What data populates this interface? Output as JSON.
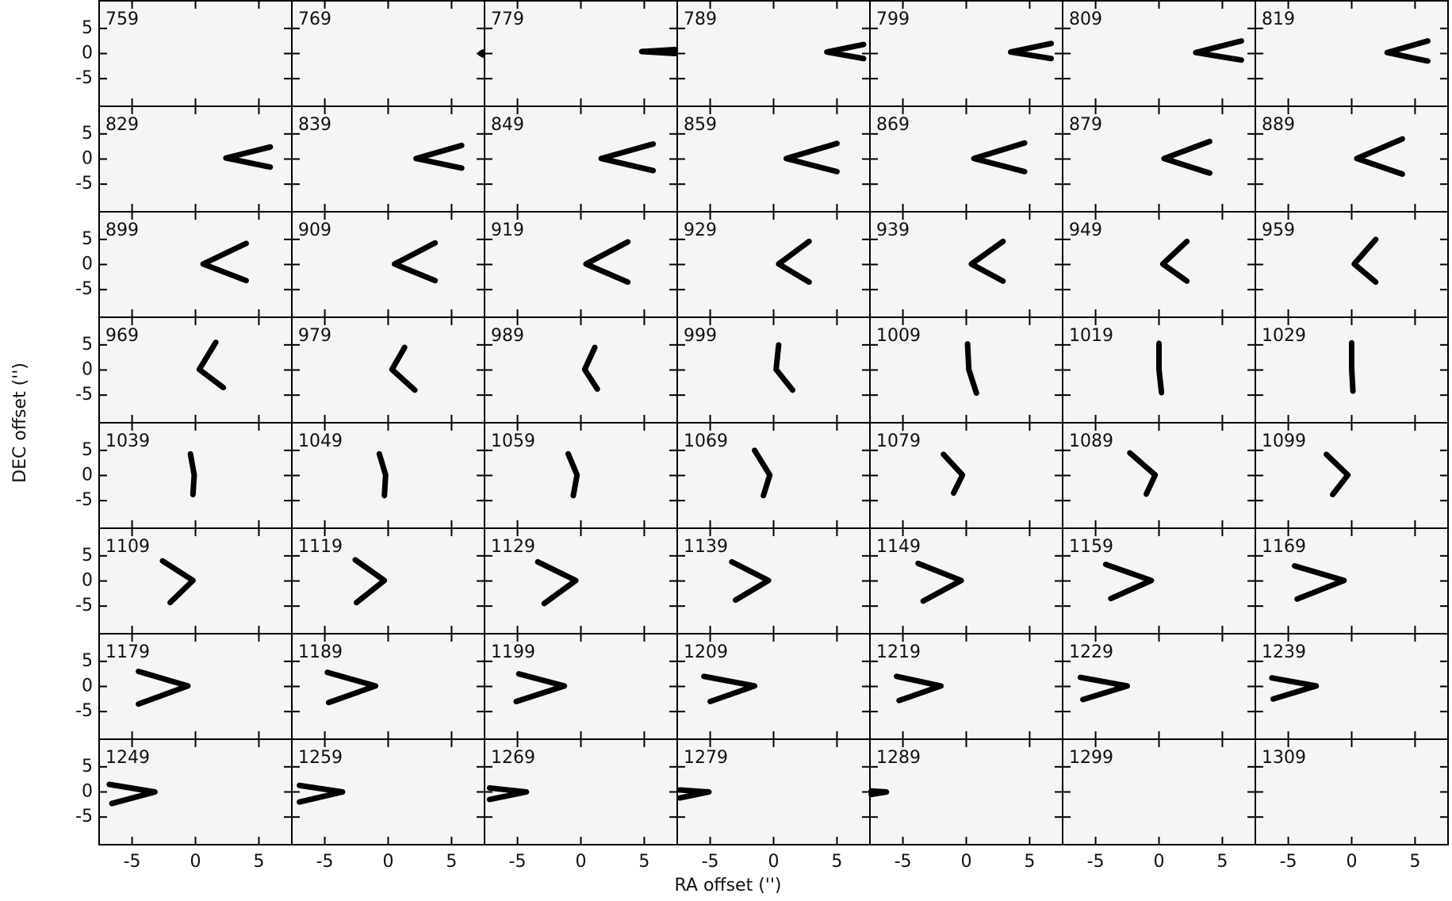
{
  "chart_data": {
    "type": "channel-map",
    "xlabel": "RA offset ('')",
    "ylabel": "DEC offset ('')",
    "xlim": [
      -7.6,
      7.6
    ],
    "ylim": [
      -10.5,
      10.5
    ],
    "xticks": [
      -5,
      0,
      5
    ],
    "yticks": [
      -5,
      0,
      5
    ],
    "color": "#000000",
    "panels": [
      {
        "label": 759
      },
      {
        "label": 769,
        "vertex": [
          7.3,
          0
        ],
        "tips": [
          [
            7.5,
            0.3
          ],
          [
            7.5,
            -0.3
          ]
        ]
      },
      {
        "label": 779,
        "vertex": [
          4.8,
          0.4
        ],
        "tips": [
          [
            7.4,
            0.8
          ],
          [
            7.4,
            0
          ]
        ]
      },
      {
        "label": 789,
        "vertex": [
          4.2,
          0.3
        ],
        "tips": [
          [
            7.1,
            1.8
          ],
          [
            7.1,
            -1
          ]
        ]
      },
      {
        "label": 799,
        "vertex": [
          3.5,
          0.3
        ],
        "tips": [
          [
            6.7,
            2
          ],
          [
            6.7,
            -1
          ]
        ]
      },
      {
        "label": 809,
        "vertex": [
          2.9,
          0.2
        ],
        "tips": [
          [
            6.5,
            2.5
          ],
          [
            6.5,
            -1.3
          ]
        ]
      },
      {
        "label": 819,
        "vertex": [
          2.8,
          0.2
        ],
        "tips": [
          [
            6,
            2.5
          ],
          [
            6,
            -1.5
          ]
        ]
      },
      {
        "label": 829,
        "vertex": [
          2.4,
          0.2
        ],
        "tips": [
          [
            5.9,
            2.4
          ],
          [
            5.9,
            -1.6
          ]
        ]
      },
      {
        "label": 839,
        "vertex": [
          2.2,
          0.1
        ],
        "tips": [
          [
            5.8,
            2.7
          ],
          [
            5.8,
            -1.8
          ]
        ]
      },
      {
        "label": 849,
        "vertex": [
          1.6,
          0.1
        ],
        "tips": [
          [
            5.7,
            3
          ],
          [
            5.7,
            -2.3
          ]
        ]
      },
      {
        "label": 859,
        "vertex": [
          1,
          0.1
        ],
        "tips": [
          [
            5,
            3.1
          ],
          [
            5,
            -2.5
          ]
        ]
      },
      {
        "label": 869,
        "vertex": [
          0.6,
          0.1
        ],
        "tips": [
          [
            4.6,
            3.2
          ],
          [
            4.6,
            -2.5
          ]
        ]
      },
      {
        "label": 879,
        "vertex": [
          0.4,
          0.1
        ],
        "tips": [
          [
            4,
            3.5
          ],
          [
            4,
            -2.8
          ]
        ]
      },
      {
        "label": 889,
        "vertex": [
          0.4,
          0.1
        ],
        "tips": [
          [
            4,
            4
          ],
          [
            4,
            -3
          ]
        ]
      },
      {
        "label": 899,
        "vertex": [
          0.6,
          0.1
        ],
        "tips": [
          [
            4,
            4.2
          ],
          [
            4,
            -3.2
          ]
        ]
      },
      {
        "label": 909,
        "vertex": [
          0.5,
          0.1
        ],
        "tips": [
          [
            3.7,
            4.3
          ],
          [
            3.7,
            -3.2
          ]
        ]
      },
      {
        "label": 919,
        "vertex": [
          0.4,
          0.1
        ],
        "tips": [
          [
            3.7,
            4.5
          ],
          [
            3.7,
            -3.5
          ]
        ]
      },
      {
        "label": 929,
        "vertex": [
          0.4,
          0.1
        ],
        "tips": [
          [
            2.8,
            4.6
          ],
          [
            2.8,
            -3.5
          ]
        ]
      },
      {
        "label": 939,
        "vertex": [
          0.4,
          0.1
        ],
        "tips": [
          [
            2.9,
            4.6
          ],
          [
            2.9,
            -3.3
          ]
        ]
      },
      {
        "label": 949,
        "vertex": [
          0.3,
          0.1
        ],
        "tips": [
          [
            2.2,
            4.6
          ],
          [
            2.2,
            -3.3
          ]
        ]
      },
      {
        "label": 959,
        "vertex": [
          0.2,
          0.1
        ],
        "tips": [
          [
            1.9,
            5
          ],
          [
            1.9,
            -3.5
          ]
        ]
      },
      {
        "label": 969,
        "vertex": [
          0.3,
          0.1
        ],
        "tips": [
          [
            1.6,
            5.5
          ],
          [
            2.2,
            -3.5
          ]
        ]
      },
      {
        "label": 979,
        "vertex": [
          0.3,
          0.1
        ],
        "tips": [
          [
            1.3,
            4.5
          ],
          [
            2.1,
            -4
          ]
        ]
      },
      {
        "label": 989,
        "vertex": [
          0.3,
          0.1
        ],
        "tips": [
          [
            1.1,
            4.5
          ],
          [
            1.3,
            -3.8
          ]
        ]
      },
      {
        "label": 999,
        "vertex": [
          0.2,
          0.1
        ],
        "tips": [
          [
            0.4,
            5
          ],
          [
            1.5,
            -4
          ]
        ]
      },
      {
        "label": 1009,
        "vertex": [
          0.2,
          0.1
        ],
        "tips": [
          [
            0.1,
            5.2
          ],
          [
            0.8,
            -4.6
          ]
        ]
      },
      {
        "label": 1019,
        "vertex": [
          0,
          0.1
        ],
        "tips": [
          [
            0,
            5.3
          ],
          [
            0.2,
            -4.5
          ]
        ]
      },
      {
        "label": 1029,
        "vertex": [
          0,
          0.1
        ],
        "tips": [
          [
            0,
            5.4
          ],
          [
            0.1,
            -4.2
          ]
        ]
      },
      {
        "label": 1039,
        "vertex": [
          -0.1,
          0.1
        ],
        "tips": [
          [
            -0.4,
            4.3
          ],
          [
            -0.2,
            -3.8
          ]
        ]
      },
      {
        "label": 1049,
        "vertex": [
          -0.2,
          0.1
        ],
        "tips": [
          [
            -0.7,
            4.3
          ],
          [
            -0.3,
            -4
          ]
        ]
      },
      {
        "label": 1059,
        "vertex": [
          -0.3,
          0.1
        ],
        "tips": [
          [
            -1,
            4.3
          ],
          [
            -0.6,
            -4
          ]
        ]
      },
      {
        "label": 1069,
        "vertex": [
          -0.3,
          0.1
        ],
        "tips": [
          [
            -1.5,
            5
          ],
          [
            -0.8,
            -4
          ]
        ]
      },
      {
        "label": 1079,
        "vertex": [
          -0.3,
          0.1
        ],
        "tips": [
          [
            -1.8,
            4.2
          ],
          [
            -1,
            -3.5
          ]
        ]
      },
      {
        "label": 1089,
        "vertex": [
          -0.3,
          0.1
        ],
        "tips": [
          [
            -2.3,
            4.5
          ],
          [
            -1,
            -3.7
          ]
        ]
      },
      {
        "label": 1099,
        "vertex": [
          -0.3,
          0.1
        ],
        "tips": [
          [
            -2,
            4.2
          ],
          [
            -1.5,
            -3.8
          ]
        ]
      },
      {
        "label": 1109,
        "vertex": [
          -0.2,
          0.1
        ],
        "tips": [
          [
            -2.6,
            4
          ],
          [
            -2,
            -4.3
          ]
        ]
      },
      {
        "label": 1119,
        "vertex": [
          -0.3,
          0.1
        ],
        "tips": [
          [
            -2.6,
            4.2
          ],
          [
            -2.5,
            -4.3
          ]
        ]
      },
      {
        "label": 1129,
        "vertex": [
          -0.4,
          0.1
        ],
        "tips": [
          [
            -3.4,
            3.8
          ],
          [
            -2.9,
            -4.5
          ]
        ]
      },
      {
        "label": 1139,
        "vertex": [
          -0.4,
          0.1
        ],
        "tips": [
          [
            -3.3,
            3.8
          ],
          [
            -3,
            -3.8
          ]
        ]
      },
      {
        "label": 1149,
        "vertex": [
          -0.4,
          0.1
        ],
        "tips": [
          [
            -3.8,
            3.5
          ],
          [
            -3.4,
            -4
          ]
        ]
      },
      {
        "label": 1159,
        "vertex": [
          -0.6,
          0.1
        ],
        "tips": [
          [
            -4.2,
            3.3
          ],
          [
            -3.8,
            -3.5
          ]
        ]
      },
      {
        "label": 1169,
        "vertex": [
          -0.6,
          0.1
        ],
        "tips": [
          [
            -4.5,
            3
          ],
          [
            -4.3,
            -3.6
          ]
        ]
      },
      {
        "label": 1179,
        "vertex": [
          -0.6,
          0.1
        ],
        "tips": [
          [
            -4.5,
            3
          ],
          [
            -4.5,
            -3.5
          ]
        ]
      },
      {
        "label": 1189,
        "vertex": [
          -1,
          0.1
        ],
        "tips": [
          [
            -4.8,
            2.8
          ],
          [
            -4.7,
            -3.2
          ]
        ]
      },
      {
        "label": 1199,
        "vertex": [
          -1.3,
          0.1
        ],
        "tips": [
          [
            -4.9,
            2.5
          ],
          [
            -5.1,
            -3
          ]
        ]
      },
      {
        "label": 1209,
        "vertex": [
          -1.5,
          0.1
        ],
        "tips": [
          [
            -5.5,
            2
          ],
          [
            -5,
            -3
          ]
        ]
      },
      {
        "label": 1219,
        "vertex": [
          -2,
          0.1
        ],
        "tips": [
          [
            -5.5,
            2
          ],
          [
            -5.3,
            -2.8
          ]
        ]
      },
      {
        "label": 1229,
        "vertex": [
          -2.5,
          0.1
        ],
        "tips": [
          [
            -6.2,
            1.8
          ],
          [
            -6,
            -2.6
          ]
        ]
      },
      {
        "label": 1239,
        "vertex": [
          -2.8,
          0.1
        ],
        "tips": [
          [
            -6.3,
            1.7
          ],
          [
            -6.2,
            -2.5
          ]
        ]
      },
      {
        "label": 1249,
        "vertex": [
          -3.2,
          0
        ],
        "tips": [
          [
            -6.8,
            1.5
          ],
          [
            -6.6,
            -2.3
          ]
        ]
      },
      {
        "label": 1259,
        "vertex": [
          -3.6,
          0
        ],
        "tips": [
          [
            -7,
            1.3
          ],
          [
            -7,
            -2
          ]
        ]
      },
      {
        "label": 1269,
        "vertex": [
          -4.3,
          0
        ],
        "tips": [
          [
            -7.2,
            0.8
          ],
          [
            -7.2,
            -1.5
          ]
        ]
      },
      {
        "label": 1279,
        "vertex": [
          -5.1,
          0
        ],
        "tips": [
          [
            -7.4,
            0.4
          ],
          [
            -7.4,
            -1.2
          ]
        ]
      },
      {
        "label": 1289,
        "vertex": [
          -6.3,
          0
        ],
        "tips": [
          [
            -7.5,
            0.2
          ],
          [
            -7.5,
            -0.5
          ]
        ]
      },
      {
        "label": 1299
      },
      {
        "label": 1309
      }
    ]
  }
}
